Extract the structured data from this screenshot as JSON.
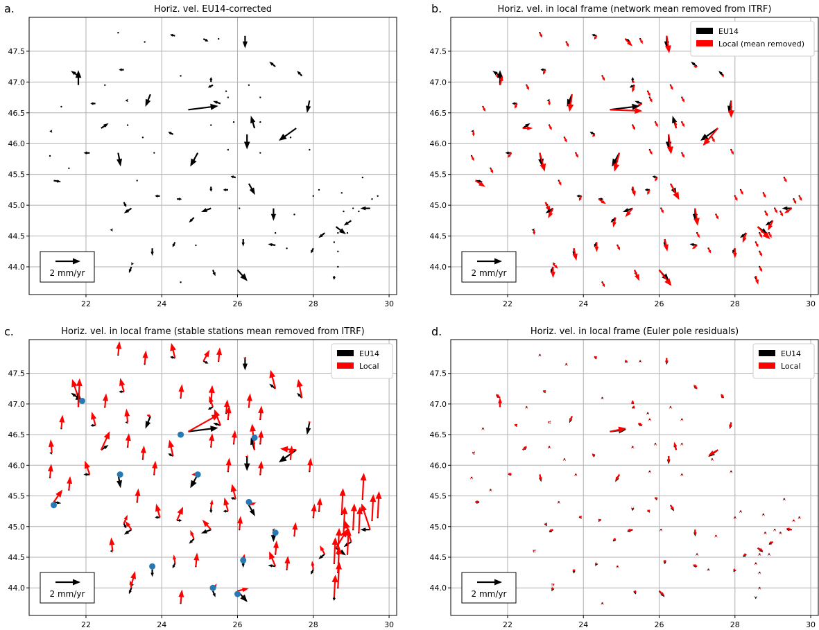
{
  "figure": {
    "colors": {
      "eu14": "#000000",
      "local": "#ff0000",
      "stable": "#2878b4",
      "grid": "#b0b0b0"
    }
  },
  "chart_data": [
    {
      "type": "quiver",
      "panel_letter": "a.",
      "title": "Horiz. vel. EU14-corrected",
      "xlabel": "",
      "ylabel": "",
      "xlim": [
        20.5,
        30.2
      ],
      "ylim": [
        43.55,
        48.05
      ],
      "xticks": [
        "22",
        "24",
        "26",
        "28",
        "30"
      ],
      "yticks": [
        "44.0",
        "44.5",
        "45.0",
        "45.5",
        "46.0",
        "46.5",
        "47.0",
        "47.5"
      ],
      "grid": true,
      "scale_key": {
        "label": "2 mm/yr",
        "value_mm_yr": 2,
        "position": "bottom-left"
      },
      "legend": [],
      "series": [
        {
          "name": "",
          "color": "#000000",
          "vectors": [
            [
              22.85,
              47.8,
              0,
              0
            ],
            [
              23.55,
              47.65,
              0,
              0
            ],
            [
              24.35,
              47.75,
              -0.2,
              0.05
            ],
            [
              25.1,
              47.7,
              0.2,
              -0.1
            ],
            [
              25.5,
              47.7,
              0,
              0
            ],
            [
              26.2,
              47.75,
              0,
              -0.5
            ],
            [
              27.0,
              47.25,
              -0.25,
              0.2
            ],
            [
              27.7,
              47.1,
              -0.2,
              0.2
            ],
            [
              21.8,
              47.1,
              -0.3,
              0.2
            ],
            [
              21.8,
              46.95,
              0,
              0.6
            ],
            [
              23.0,
              47.2,
              -0.2,
              0
            ],
            [
              24.5,
              47.1,
              0,
              0
            ],
            [
              25.3,
              47.0,
              0,
              0.2
            ],
            [
              23.7,
              46.8,
              -0.2,
              -0.5
            ],
            [
              25.35,
              46.95,
              -0.2,
              -0.1
            ],
            [
              25.75,
              46.75,
              0,
              0
            ],
            [
              26.3,
              46.95,
              0,
              0
            ],
            [
              25.55,
              46.65,
              -0.3,
              0.1
            ],
            [
              27.9,
              46.7,
              -0.1,
              -0.5
            ],
            [
              22.25,
              46.65,
              -0.2,
              0
            ],
            [
              23.1,
              46.7,
              -0.1,
              0
            ],
            [
              21.35,
              46.6,
              0,
              0
            ],
            [
              24.7,
              46.55,
              1.2,
              0.15
            ],
            [
              26.45,
              46.25,
              -0.15,
              0.5
            ],
            [
              22.4,
              46.25,
              0.3,
              0.2
            ],
            [
              23.1,
              46.3,
              0,
              0
            ],
            [
              25.3,
              46.3,
              0,
              0
            ],
            [
              25.9,
              46.35,
              0,
              0
            ],
            [
              21.1,
              46.2,
              -0.1,
              0
            ],
            [
              24.3,
              46.15,
              -0.2,
              0.1
            ],
            [
              23.5,
              46.1,
              0,
              0
            ],
            [
              26.25,
              46.15,
              0,
              -0.6
            ],
            [
              27.55,
              46.25,
              -0.7,
              -0.5
            ],
            [
              27.4,
              46.1,
              0,
              0
            ],
            [
              22.1,
              45.85,
              -0.25,
              0
            ],
            [
              22.85,
              45.85,
              0.1,
              -0.55
            ],
            [
              23.8,
              45.85,
              0,
              0
            ],
            [
              24.95,
              45.85,
              -0.3,
              -0.55
            ],
            [
              25.75,
              45.9,
              0,
              0
            ],
            [
              26.6,
              45.85,
              0,
              0
            ],
            [
              27.9,
              45.9,
              0,
              0
            ],
            [
              21.05,
              45.8,
              0,
              0
            ],
            [
              21.55,
              45.6,
              0,
              0
            ],
            [
              23.35,
              45.4,
              0,
              0
            ],
            [
              21.15,
              45.4,
              0.3,
              -0.05
            ],
            [
              25.95,
              45.45,
              -0.2,
              0.05
            ],
            [
              26.3,
              45.35,
              0.25,
              -0.45
            ],
            [
              25.3,
              45.3,
              0,
              -0.2
            ],
            [
              25.75,
              45.25,
              -0.2,
              0
            ],
            [
              23.95,
              45.15,
              -0.2,
              0
            ],
            [
              24.4,
              45.1,
              0.2,
              0
            ],
            [
              23.0,
              45.05,
              0.1,
              -0.2
            ],
            [
              23.2,
              44.95,
              -0.3,
              -0.2
            ],
            [
              28.15,
              45.25,
              0,
              0
            ],
            [
              28.75,
              45.2,
              0,
              0
            ],
            [
              29.3,
              45.45,
              0,
              0
            ],
            [
              29.55,
              45.1,
              0,
              0
            ],
            [
              29.7,
              45.15,
              0,
              0
            ],
            [
              25.3,
              44.95,
              -0.4,
              -0.15
            ],
            [
              26.05,
              44.95,
              0,
              0
            ],
            [
              28.0,
              45.15,
              0,
              0
            ],
            [
              28.8,
              44.9,
              0,
              0
            ],
            [
              29.05,
              44.95,
              0,
              0
            ],
            [
              29.5,
              44.95,
              -0.4,
              0
            ],
            [
              29.2,
              44.9,
              0,
              0
            ],
            [
              22.7,
              44.6,
              -0.1,
              0
            ],
            [
              24.85,
              44.8,
              -0.2,
              -0.2
            ],
            [
              26.95,
              44.95,
              0,
              -0.5
            ],
            [
              27.5,
              44.85,
              0,
              0
            ],
            [
              28.6,
              44.65,
              0.4,
              -0.3
            ],
            [
              29.0,
              44.75,
              -0.3,
              -0.2
            ],
            [
              24.35,
              44.4,
              -0.1,
              -0.2
            ],
            [
              24.9,
              44.35,
              0,
              0
            ],
            [
              26.15,
              44.45,
              0,
              -0.3
            ],
            [
              27.0,
              44.55,
              0,
              0
            ],
            [
              27.0,
              44.35,
              -0.3,
              0.05
            ],
            [
              28.3,
              44.55,
              -0.25,
              -0.2
            ],
            [
              28.65,
              44.55,
              0,
              0
            ],
            [
              28.9,
              44.55,
              0,
              0
            ],
            [
              23.75,
              44.3,
              0,
              -0.3
            ],
            [
              23.2,
              44.05,
              0.1,
              0
            ],
            [
              23.2,
              44.0,
              -0.1,
              -0.25
            ],
            [
              24.5,
              43.75,
              0,
              0
            ],
            [
              25.35,
              43.95,
              0.1,
              -0.25
            ],
            [
              26.0,
              43.95,
              0.4,
              -0.45
            ],
            [
              28.55,
              43.85,
              0,
              -0.15
            ],
            [
              27.3,
              44.3,
              0,
              0
            ],
            [
              28.0,
              44.3,
              -0.1,
              -0.2
            ],
            [
              28.55,
              44.4,
              0,
              0
            ],
            [
              28.65,
              44.25,
              0,
              0
            ],
            [
              28.65,
              44.0,
              0,
              0
            ],
            [
              26.6,
              46.75,
              0,
              0
            ],
            [
              25.7,
              46.85,
              0,
              0
            ],
            [
              26.6,
              46.35,
              0,
              0
            ],
            [
              22.5,
              46.95,
              0,
              0
            ]
          ]
        }
      ]
    },
    {
      "type": "quiver",
      "panel_letter": "b.",
      "title": "Horiz. vel. in local frame (network mean removed from ITRF)",
      "xlabel": "",
      "ylabel": "",
      "xlim": [
        20.5,
        30.2
      ],
      "ylim": [
        43.55,
        48.05
      ],
      "xticks": [
        "22",
        "24",
        "26",
        "28",
        "30"
      ],
      "yticks": [
        "44.0",
        "44.5",
        "45.0",
        "45.5",
        "46.0",
        "46.5",
        "47.0",
        "47.5"
      ],
      "grid": true,
      "scale_key": {
        "label": "2 mm/yr",
        "value_mm_yr": 2,
        "position": "bottom-left"
      },
      "legend": [
        "EU14",
        "Local (mean removed)"
      ],
      "local_offset": [
        0.1,
        -0.2
      ],
      "series": [
        {
          "name": "EU14",
          "color": "#000000",
          "vectors": []
        },
        {
          "name": "Local (mean removed)",
          "color": "#ff0000",
          "vectors": []
        }
      ]
    },
    {
      "type": "quiver",
      "panel_letter": "c.",
      "title": "Horiz. vel. in local frame (stable stations mean removed from ITRF)",
      "xlabel": "",
      "ylabel": "",
      "xlim": [
        20.5,
        30.2
      ],
      "ylim": [
        43.55,
        48.05
      ],
      "xticks": [
        "22",
        "24",
        "26",
        "28",
        "30"
      ],
      "yticks": [
        "44.0",
        "44.5",
        "45.0",
        "45.5",
        "46.0",
        "46.5",
        "47.0",
        "47.5"
      ],
      "grid": true,
      "scale_key": {
        "label": "2 mm/yr",
        "value_mm_yr": 2,
        "position": "bottom-left"
      },
      "legend": [
        "EU14",
        "Local"
      ],
      "local_offset": [
        0.05,
        0.55
      ],
      "stable_stations": [
        [
          21.9,
          47.05
        ],
        [
          22.9,
          45.85
        ],
        [
          24.5,
          46.5
        ],
        [
          24.95,
          45.85
        ],
        [
          26.45,
          46.45
        ],
        [
          26.3,
          45.4
        ],
        [
          21.15,
          45.35
        ],
        [
          23.75,
          44.35
        ],
        [
          25.35,
          44.0
        ],
        [
          26.15,
          44.45
        ],
        [
          27.0,
          44.9
        ],
        [
          26.0,
          43.9
        ]
      ],
      "series": [
        {
          "name": "EU14",
          "color": "#000000",
          "vectors": []
        },
        {
          "name": "Local",
          "color": "#ff0000",
          "vectors": []
        }
      ]
    },
    {
      "type": "quiver",
      "panel_letter": "d.",
      "title": "Horiz. vel. in local frame (Euler pole residuals)",
      "xlabel": "",
      "ylabel": "",
      "xlim": [
        20.5,
        30.2
      ],
      "ylim": [
        43.55,
        48.05
      ],
      "xticks": [
        "22",
        "24",
        "26",
        "28",
        "30"
      ],
      "yticks": [
        "44.0",
        "44.5",
        "45.0",
        "45.5",
        "46.0",
        "46.5",
        "47.0",
        "47.5"
      ],
      "grid": true,
      "scale_key": {
        "label": "2 mm/yr",
        "value_mm_yr": 2,
        "position": "bottom-left"
      },
      "legend": [
        "EU14",
        "Local"
      ],
      "local_offset": [
        0.0,
        0.05
      ],
      "series": [
        {
          "name": "EU14",
          "color": "#000000",
          "vectors": []
        },
        {
          "name": "Local",
          "color": "#ff0000",
          "vectors": []
        }
      ]
    }
  ]
}
